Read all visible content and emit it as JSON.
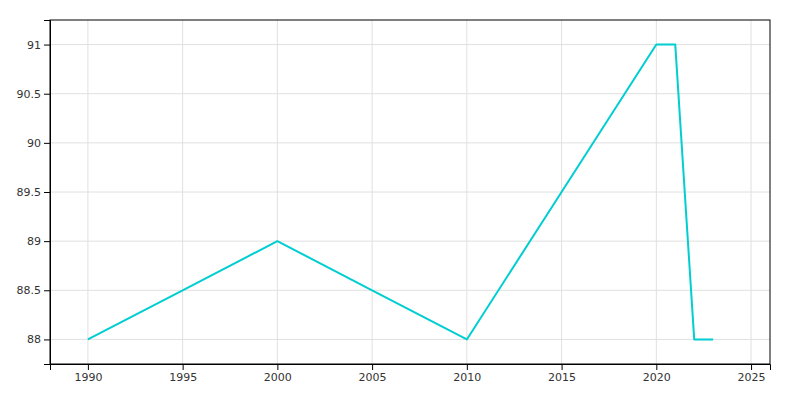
{
  "chart_data": {
    "type": "line",
    "x": [
      1990,
      1995,
      2000,
      2005,
      2010,
      2015,
      2020,
      2021,
      2022,
      2023
    ],
    "values": [
      88,
      88.5,
      89,
      88.5,
      88,
      89.5,
      91,
      91,
      88,
      88
    ],
    "color": "#00CED1",
    "xlim": [
      1988,
      2026
    ],
    "ylim": [
      87.75,
      91.25
    ],
    "xticks": [
      1990,
      1995,
      2000,
      2005,
      2010,
      2015,
      2020,
      2025
    ],
    "yticks": [
      88,
      88.5,
      89,
      89.5,
      90,
      90.5,
      91
    ],
    "grid": true
  }
}
